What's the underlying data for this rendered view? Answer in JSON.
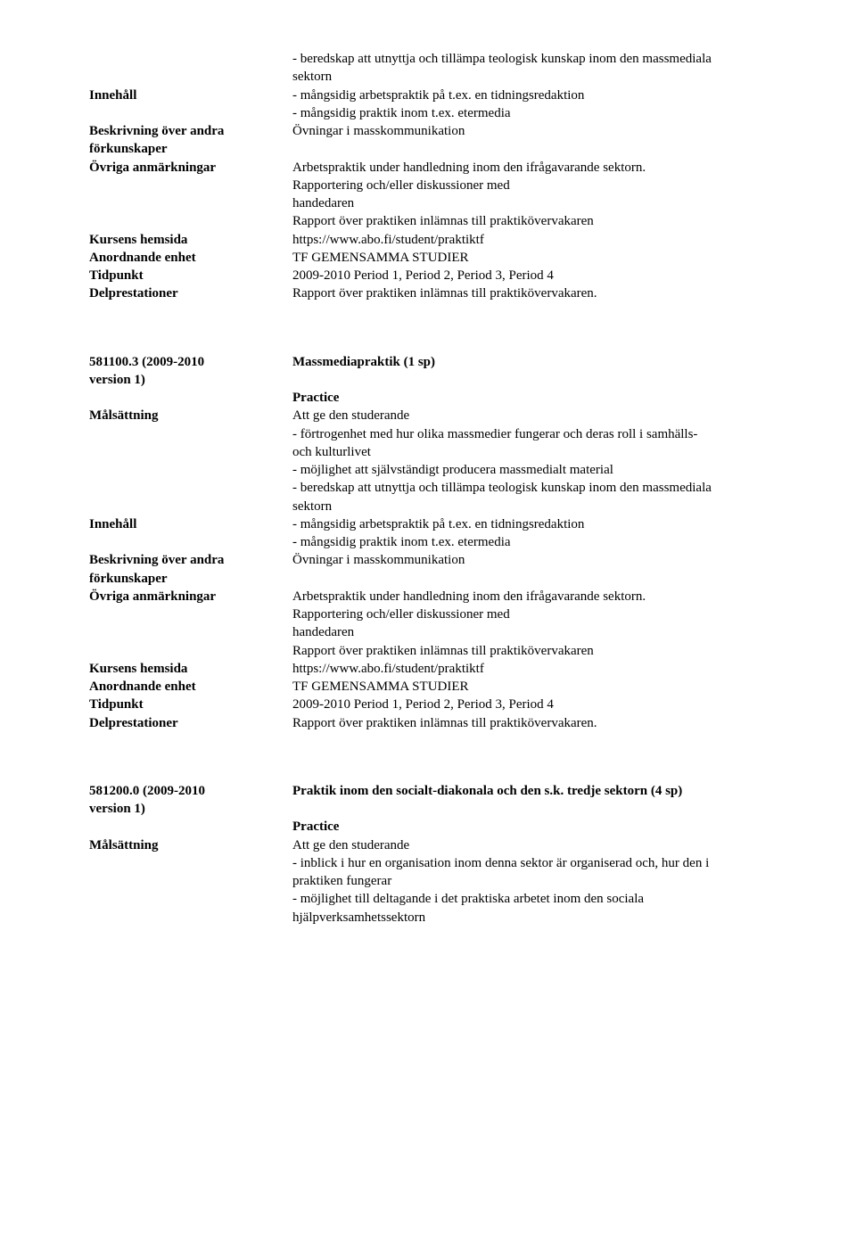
{
  "s1": {
    "pre1": "- beredskap att utnyttja och tillämpa teologisk kunskap inom den massmediala",
    "pre2": "sektorn",
    "innehall_label": "Innehåll",
    "innehall_v1": "- mångsidig arbetspraktik på t.ex. en tidningsredaktion",
    "innehall_v2": "- mångsidig praktik inom t.ex. etermedia",
    "beskrivning_label1": "Beskrivning över andra",
    "beskrivning_label2": "förkunskaper",
    "beskrivning_v": "Övningar i masskommunikation",
    "ovriga_label": "Övriga anmärkningar",
    "ovriga_v1": "Arbetspraktik under handledning inom den ifrågavarande sektorn.",
    "ovriga_v2": "Rapportering och/eller diskussioner med",
    "ovriga_v3": "handedaren",
    "ovriga_v4": "Rapport över praktiken inlämnas till praktikövervakaren",
    "hemsida_label": "Kursens hemsida",
    "hemsida_v": "https://www.abo.fi/student/praktiktf",
    "anordnande_label": "Anordnande enhet",
    "anordnande_v": "TF GEMENSAMMA STUDIER",
    "tidpunkt_label": "Tidpunkt",
    "tidpunkt_v": "2009-2010 Period 1, Period 2, Period 3, Period 4",
    "delprestationer_label": "Delprestationer",
    "delprestationer_v": "Rapport över praktiken inlämnas till praktikövervakaren."
  },
  "s2": {
    "code1": "581100.3 (2009-2010",
    "code2": "version 1)",
    "title": "Massmediapraktik    (1 sp)",
    "practice": "Practice",
    "malsattning_label": "Målsättning",
    "malsattning_v1": "Att ge den studerande",
    "malsattning_v2": "- förtrogenhet med hur olika massmedier fungerar och deras roll i samhälls-",
    "malsattning_v3": "och kulturlivet",
    "malsattning_v4": "- möjlighet att självständigt producera massmedialt material",
    "malsattning_v5": "- beredskap att utnyttja och tillämpa teologisk kunskap inom den massmediala",
    "malsattning_v6": "sektorn",
    "innehall_label": "Innehåll",
    "innehall_v1": "- mångsidig arbetspraktik på t.ex. en tidningsredaktion",
    "innehall_v2": "- mångsidig praktik inom t.ex. etermedia",
    "beskrivning_label1": "Beskrivning över andra",
    "beskrivning_label2": "förkunskaper",
    "beskrivning_v": "Övningar i masskommunikation",
    "ovriga_label": "Övriga anmärkningar",
    "ovriga_v1": "Arbetspraktik under handledning inom den ifrågavarande sektorn.",
    "ovriga_v2": "Rapportering och/eller diskussioner med",
    "ovriga_v3": "handedaren",
    "ovriga_v4": "Rapport över praktiken inlämnas till praktikövervakaren",
    "hemsida_label": "Kursens hemsida",
    "hemsida_v": "https://www.abo.fi/student/praktiktf",
    "anordnande_label": "Anordnande enhet",
    "anordnande_v": "TF GEMENSAMMA STUDIER",
    "tidpunkt_label": "Tidpunkt",
    "tidpunkt_v": "2009-2010 Period 1, Period 2, Period 3, Period 4",
    "delprestationer_label": "Delprestationer",
    "delprestationer_v": "Rapport över praktiken inlämnas till praktikövervakaren."
  },
  "s3": {
    "code1": "581200.0 (2009-2010",
    "code2": "version 1)",
    "title": "Praktik inom den socialt-diakonala och den s.k. tredje sektorn    (4 sp)",
    "practice": "Practice",
    "malsattning_label": "Målsättning",
    "malsattning_v1": "Att ge den studerande",
    "malsattning_v2": "- inblick i hur en organisation inom denna sektor är organiserad och, hur den i",
    "malsattning_v3": "praktiken fungerar",
    "malsattning_v4": "- möjlighet till deltagande i det praktiska arbetet inom den sociala",
    "malsattning_v5": "hjälpverksamhetssektorn"
  }
}
